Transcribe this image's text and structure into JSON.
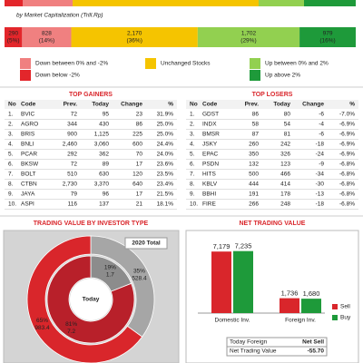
{
  "market_cap": {
    "title": "by Market Capitalization (Trill.Rp)",
    "segments": [
      {
        "value": 290,
        "share": 5,
        "share_label": "(5%)",
        "color": "#e3262b"
      },
      {
        "value": 828,
        "share": 14,
        "share_label": "(14%)",
        "color": "#f08080"
      },
      {
        "value": 2170,
        "value_label": "2,170",
        "share": 36,
        "share_label": "(36%)",
        "color": "#f5c400"
      },
      {
        "value": 1702,
        "value_label": "1,702",
        "share": 29,
        "share_label": "(29%)",
        "color": "#92d050"
      },
      {
        "value": 979,
        "share": 16,
        "share_label": "(16%)",
        "color": "#1e9a3a"
      }
    ]
  },
  "legend": [
    {
      "label": "Down between 0% and -2%",
      "color": "#f08080"
    },
    {
      "label": "Down below -2%",
      "color": "#e3262b"
    },
    {
      "label": "Unchanged Stocks",
      "color": "#f5c400"
    },
    {
      "label": "Up between 0% and 2%",
      "color": "#92d050"
    },
    {
      "label": "Up above 2%",
      "color": "#1e9a3a"
    }
  ],
  "gainers": {
    "title": "TOP GAINERS",
    "columns": [
      "No",
      "Code",
      "Prev.",
      "Today",
      "Change",
      "%"
    ],
    "rows": [
      [
        "1.",
        "BVIC",
        "72",
        "95",
        "23",
        "31.9%"
      ],
      [
        "2.",
        "AGRO",
        "344",
        "430",
        "86",
        "25.0%"
      ],
      [
        "3.",
        "BRIS",
        "900",
        "1,125",
        "225",
        "25.0%"
      ],
      [
        "4.",
        "BNLI",
        "2,460",
        "3,060",
        "600",
        "24.4%"
      ],
      [
        "5.",
        "PCAR",
        "292",
        "362",
        "70",
        "24.0%"
      ],
      [
        "6.",
        "BKSW",
        "72",
        "89",
        "17",
        "23.6%"
      ],
      [
        "7.",
        "BOLT",
        "510",
        "630",
        "120",
        "23.5%"
      ],
      [
        "8.",
        "CTBN",
        "2,730",
        "3,370",
        "640",
        "23.4%"
      ],
      [
        "9.",
        "JAYA",
        "79",
        "96",
        "17",
        "21.5%"
      ],
      [
        "10.",
        "ASPI",
        "116",
        "137",
        "21",
        "18.1%"
      ]
    ]
  },
  "losers": {
    "title": "TOP LOSERS",
    "columns": [
      "No",
      "Code",
      "Prev.",
      "Today",
      "Change",
      "%"
    ],
    "rows": [
      [
        "1.",
        "GDST",
        "86",
        "80",
        "-6",
        "-7.0%"
      ],
      [
        "2.",
        "INDX",
        "58",
        "54",
        "-4",
        "-6.9%"
      ],
      [
        "3.",
        "BMSR",
        "87",
        "81",
        "-6",
        "-6.9%"
      ],
      [
        "4.",
        "JSKY",
        "260",
        "242",
        "-18",
        "-6.9%"
      ],
      [
        "5.",
        "EPAC",
        "350",
        "326",
        "-24",
        "-6.9%"
      ],
      [
        "6.",
        "PSDN",
        "132",
        "123",
        "-9",
        "-6.8%"
      ],
      [
        "7.",
        "HITS",
        "500",
        "466",
        "-34",
        "-6.8%"
      ],
      [
        "8.",
        "KBLV",
        "444",
        "414",
        "-30",
        "-6.8%"
      ],
      [
        "9.",
        "BBHI",
        "191",
        "178",
        "-13",
        "-6.8%"
      ],
      [
        "10.",
        "FIRE",
        "266",
        "248",
        "-18",
        "-6.8%"
      ]
    ]
  },
  "trading_value": {
    "title": "TRADING VALUE BY INVESTOR TYPE",
    "total_label": "2020 Total",
    "center_label": "Today",
    "outer": [
      {
        "share": 35,
        "share_label": "35%",
        "value": 528.4,
        "color": "#a6a6a6"
      },
      {
        "share": 65,
        "share_label": "65%",
        "value": 983.4,
        "color": "#d9262b"
      }
    ],
    "inner": [
      {
        "share": 19,
        "share_label": "19%",
        "value": 1.7,
        "color": "#8c8c8c"
      },
      {
        "share": 81,
        "share_label": "81%",
        "value": 7.2,
        "color": "#b8202a"
      }
    ]
  },
  "net_trading": {
    "title": "NET TRADING VALUE",
    "categories": [
      "Domestic Inv.",
      "Foreign Inv."
    ],
    "series": [
      {
        "name": "Sell",
        "color": "#d9262b",
        "values": [
          7179,
          1736
        ],
        "value_labels": [
          "7,179",
          "1,736"
        ]
      },
      {
        "name": "Buy",
        "color": "#1e9a3a",
        "values": [
          7235,
          1680
        ],
        "value_labels": [
          "7,235",
          "1,680"
        ]
      }
    ],
    "table": [
      [
        "Today Foreign",
        "Net Sell"
      ],
      [
        "Net Trading Value",
        "-55.70"
      ]
    ]
  }
}
